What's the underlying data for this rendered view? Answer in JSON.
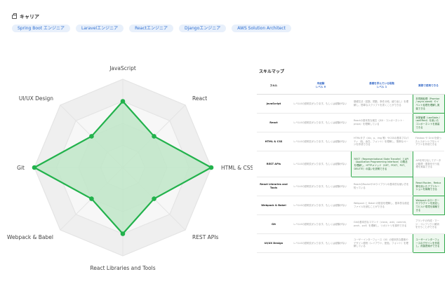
{
  "career": {
    "title": "キャリア",
    "chips": [
      "Spring Boot エンジニア",
      "Laravelエンジニア",
      "Reactエンジニア",
      "Djangoエンジニア",
      "AWS Solution Architect"
    ]
  },
  "radar": {
    "axes": [
      "JavaScript",
      "React",
      "HTML & CSS",
      "REST APIs",
      "React Libraries and Tools",
      "Webpack & Babel",
      "Git",
      "UI/UX Design"
    ],
    "levels": 4,
    "values": [
      3,
      2,
      4,
      2,
      3,
      2,
      4,
      2
    ],
    "colors": {
      "grid": "#efefef",
      "grid_stroke": "#e4e4e4",
      "line": "#22b24c",
      "fill": "#bfe6c8"
    }
  },
  "skill_map": {
    "title": "スキルマップ",
    "headers": [
      {
        "line1": "スキル",
        "line2": ""
      },
      {
        "line1": "未経験",
        "line2": "レベル 0"
      },
      {
        "line1": "基礎を学んでいる段階",
        "line2": "レベル 1"
      },
      {
        "line1": "業務で使用できる",
        "line2": ""
      }
    ],
    "rows": [
      {
        "skill": "JavaScript",
        "c0": "レベル0の説明文が入ります。もしくは経験がない",
        "c1": "基礎文法（変数、関数、条件分岐、繰り返し）を理解し、簡単なスクリプトを書くことができる",
        "c2": "非同期処理（Promise / async-await）やイベント処理を理解し実装できる",
        "hl": 2
      },
      {
        "skill": "React",
        "c0": "レベル0の説明文が入ります。もしくは経験がない",
        "c1": "Reactの基本的な構文（JSX・コンポーネント・props）を理解している",
        "c2": "状態管理（useState / useEffect）を用いたコンポーネントを実装できる",
        "hl": 2
      },
      {
        "skill": "HTML & CSS",
        "c0": "レベル0の説明文が入ります。もしくは経験がない",
        "c1": "HTMLタグ（div、p、img 等）やCSSの基本プロパティ（色、余白、フォント）を理解し、簡単なページを作成できる",
        "c2": "Flexbox や Grid を使ったレスポンシブなレイアウトを作成できる",
        "hl": 0
      },
      {
        "skill": "REST APIs",
        "c0": "レベル0の説明文が入ります。もしくは経験がない",
        "c1": "REST（Representational State Transfer）とAPI（Application Programming Interface）の概念を理解し、HTTPメソッド（GET、POST、PUT、DELETE）の違いを説明できる",
        "c2": "APIを呼び出してデータの取得・更新を行う処理を実装できる",
        "hl": 1
      },
      {
        "skill": "React Libraries and Tools",
        "c0": "レベル0の説明文が入ります。もしくは経験がない",
        "c1": "ReactのRouterやUIライブラリの基本的な使い方を知っている",
        "c2": "React Router、Redux 等を用いたアプリケーションを構築できる",
        "hl": 2
      },
      {
        "skill": "Webpack & Babel",
        "c0": "レベル0の説明文が入ります。もしくは経験がない",
        "c1": "Webpack と Babel の役割を理解し、基本的な設定ファイルを読むことができる",
        "c2": "Webpack のローダーやプラグインを設定してビルド環境を構築できる",
        "hl": 2
      },
      {
        "skill": "Git",
        "c0": "レベル0の説明文が入ります。もしくは経験がない",
        "c1": "Gitの基本的なコマンド（clone、add、commit、push、pull）を理解し、リポジトリを操作できる",
        "c2": "ブランチの作成・マージ・コンフリクト解消を行うことができる",
        "hl": 0
      },
      {
        "skill": "UI/UX Design",
        "c0": "レベル0の説明文が入ります。もしくは経験がない",
        "c1": "ユーザーインターフェース（UI）の基本的な要素やデザイン原則（レイアウト、配色、フォント）を理解している",
        "c2": "ユーザーインターフェースのデザインを作成し、改善提案ができる",
        "hl": 2
      }
    ]
  }
}
